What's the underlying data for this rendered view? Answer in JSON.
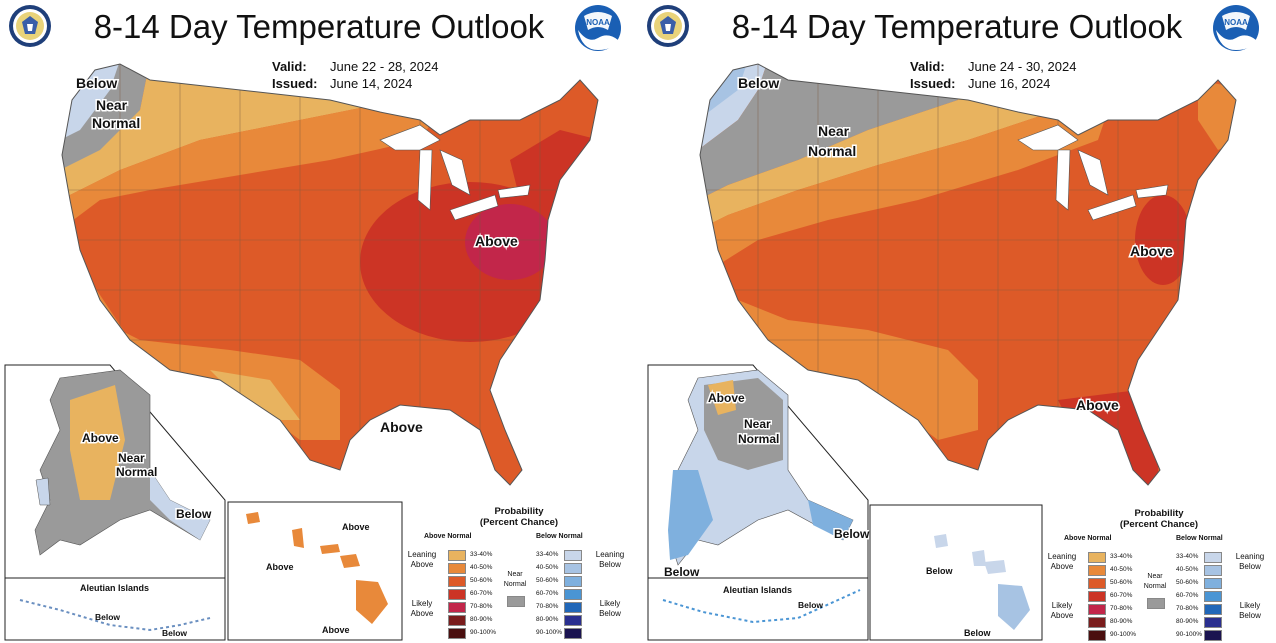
{
  "panels": [
    {
      "title": "8-14 Day Temperature Outlook",
      "valid_label": "Valid:",
      "valid_value": "June 22 - 28, 2024",
      "issued_label": "Issued:",
      "issued_value": "June 14, 2024",
      "labels": {
        "below_nw": "Below",
        "near_normal_nw_1": "Near",
        "near_normal_nw_2": "Normal",
        "above_center": "Above",
        "above_south": "Above",
        "ak_above": "Above",
        "ak_near_1": "Near",
        "ak_near_2": "Normal",
        "ak_below": "Below",
        "aleutian_title": "Aleutian Islands",
        "aleutian_below_1": "Below",
        "aleutian_below_2": "Below",
        "hi_above_1": "Above",
        "hi_above_2": "Above",
        "hi_above_3": "Above"
      }
    },
    {
      "title": "8-14 Day Temperature Outlook",
      "valid_label": "Valid:",
      "valid_value": "June 24 - 30, 2024",
      "issued_label": "Issued:",
      "issued_value": "June 16, 2024",
      "labels": {
        "below_nw": "Below",
        "near_normal_nw_1": "Near",
        "near_normal_nw_2": "Normal",
        "above_center": "Above",
        "above_south": "Above",
        "ak_above": "Above",
        "ak_near_1": "Near",
        "ak_near_2": "Normal",
        "ak_below": "Below",
        "ak_below_sw": "Below",
        "aleutian_title": "Aleutian Islands",
        "aleutian_below_1": "Below",
        "hi_below_1": "Below",
        "hi_below_2": "Below"
      }
    }
  ],
  "legend": {
    "title_1": "Probability",
    "title_2": "(Percent Chance)",
    "above_header": "Above Normal",
    "below_header": "Below Normal",
    "leaning_above_1": "Leaning",
    "leaning_above_2": "Above",
    "likely_above_1": "Likely",
    "likely_above_2": "Above",
    "leaning_below_1": "Leaning",
    "leaning_below_2": "Below",
    "likely_below_1": "Likely",
    "likely_below_2": "Below",
    "near_normal_1": "Near",
    "near_normal_2": "Normal",
    "above_ranges": [
      "33-40%",
      "40-50%",
      "50-60%",
      "60-70%",
      "70-80%",
      "80-90%",
      "90-100%"
    ],
    "below_ranges": [
      "33-40%",
      "40-50%",
      "50-60%",
      "60-70%",
      "70-80%",
      "80-90%",
      "90-100%"
    ],
    "above_colors": [
      "#e8b35f",
      "#e8893a",
      "#dd5a28",
      "#cc3425",
      "#c2264a",
      "#7a1d1d",
      "#4a0f0f"
    ],
    "below_colors": [
      "#c8d6ea",
      "#a7c3e3",
      "#7fb0de",
      "#4a95d4",
      "#2167b8",
      "#2a2f8f",
      "#1a1350"
    ],
    "near_color": "#9a9a9a"
  },
  "colors": {
    "above_33_40": "#e8b35f",
    "above_40_50": "#e8893a",
    "above_50_60": "#dd5a28",
    "above_60_70": "#cc3425",
    "above_70_80": "#c2264a",
    "below_33_40": "#c8d6ea",
    "below_40_50": "#a7c3e3",
    "below_50_60": "#7fb0de",
    "near_normal": "#9a9a9a",
    "state_line": "#7a5a40"
  }
}
